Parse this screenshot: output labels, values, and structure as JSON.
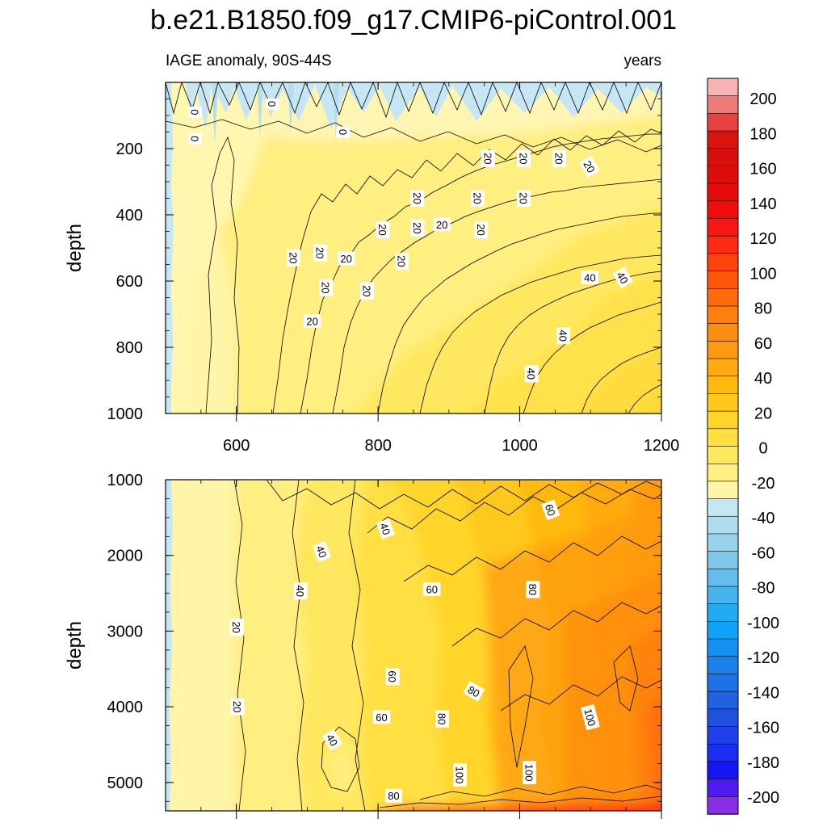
{
  "chart_data": [
    {
      "type": "contour",
      "panel": "upper",
      "title": "b.e21.B1850.f09_g17.CMIP6-piControl.001",
      "left_label": "IAGE anomaly, 90S-44S",
      "right_label": "years",
      "xlabel": "",
      "ylabel": "depth",
      "xlim": [
        500,
        1200
      ],
      "ylim": [
        1000,
        0
      ],
      "x_ticks": [
        600,
        800,
        1000,
        1200
      ],
      "y_ticks": [
        200,
        400,
        600,
        800,
        1000
      ],
      "contour_interval": 10,
      "contour_labels": [
        {
          "text": "0",
          "x": 541,
          "y": 90,
          "angle": 90
        },
        {
          "text": "0",
          "x": 541,
          "y": 170,
          "angle": 90
        },
        {
          "text": "0",
          "x": 650,
          "y": 65,
          "angle": 90
        },
        {
          "text": "0",
          "x": 750,
          "y": 150,
          "angle": 90
        },
        {
          "text": "20",
          "x": 955,
          "y": 230,
          "angle": 90
        },
        {
          "text": "20",
          "x": 1005,
          "y": 230,
          "angle": 90
        },
        {
          "text": "20",
          "x": 1055,
          "y": 230,
          "angle": 90
        },
        {
          "text": "20",
          "x": 1098,
          "y": 255,
          "angle": 60
        },
        {
          "text": "20",
          "x": 855,
          "y": 350,
          "angle": 90
        },
        {
          "text": "20",
          "x": 940,
          "y": 350,
          "angle": 90
        },
        {
          "text": "20",
          "x": 1005,
          "y": 350,
          "angle": 90
        },
        {
          "text": "20",
          "x": 890,
          "y": 430,
          "angle": 0
        },
        {
          "text": "20",
          "x": 855,
          "y": 440,
          "angle": 90
        },
        {
          "text": "20",
          "x": 806,
          "y": 445,
          "angle": 90
        },
        {
          "text": "20",
          "x": 945,
          "y": 445,
          "angle": 90
        },
        {
          "text": "20",
          "x": 680,
          "y": 530,
          "angle": 90
        },
        {
          "text": "20",
          "x": 718,
          "y": 515,
          "angle": 90
        },
        {
          "text": "20",
          "x": 755,
          "y": 533,
          "angle": 0
        },
        {
          "text": "20",
          "x": 833,
          "y": 540,
          "angle": 90
        },
        {
          "text": "20",
          "x": 726,
          "y": 620,
          "angle": 90
        },
        {
          "text": "20",
          "x": 784,
          "y": 630,
          "angle": 90
        },
        {
          "text": "20",
          "x": 707,
          "y": 722,
          "angle": 0
        },
        {
          "text": "40",
          "x": 1099,
          "y": 590,
          "angle": 0
        },
        {
          "text": "40",
          "x": 1145,
          "y": 590,
          "angle": 60
        },
        {
          "text": "40",
          "x": 1061,
          "y": 765,
          "angle": 90
        },
        {
          "text": "40",
          "x": 1016,
          "y": 880,
          "angle": 90
        }
      ]
    },
    {
      "type": "contour",
      "panel": "lower",
      "xlabel": "",
      "ylabel": "depth",
      "xlim": [
        500,
        1200
      ],
      "ylim": [
        5375,
        1000
      ],
      "x_ticks": [
        600,
        800,
        1000,
        1200
      ],
      "y_ticks": [
        1000,
        2000,
        3000,
        4000,
        5000
      ],
      "contour_interval": 10,
      "contour_labels": [
        {
          "text": "20",
          "x": 600,
          "y": 2950,
          "angle": 90
        },
        {
          "text": "20",
          "x": 601,
          "y": 4000,
          "angle": 90
        },
        {
          "text": "40",
          "x": 690,
          "y": 2470,
          "angle": 90
        },
        {
          "text": "40",
          "x": 720,
          "y": 1950,
          "angle": 70
        },
        {
          "text": "40",
          "x": 810,
          "y": 1650,
          "angle": 70
        },
        {
          "text": "40",
          "x": 735,
          "y": 4440,
          "angle": 60
        },
        {
          "text": "60",
          "x": 876,
          "y": 2450,
          "angle": 0
        },
        {
          "text": "60",
          "x": 1043,
          "y": 1400,
          "angle": 70
        },
        {
          "text": "60",
          "x": 820,
          "y": 3600,
          "angle": 90
        },
        {
          "text": "60",
          "x": 805,
          "y": 4140,
          "angle": 0
        },
        {
          "text": "80",
          "x": 1018,
          "y": 2450,
          "angle": 90
        },
        {
          "text": "80",
          "x": 935,
          "y": 3800,
          "angle": 30
        },
        {
          "text": "80",
          "x": 890,
          "y": 4160,
          "angle": 90
        },
        {
          "text": "80",
          "x": 822,
          "y": 5180,
          "angle": 0
        },
        {
          "text": "100",
          "x": 1099,
          "y": 4140,
          "angle": 75
        },
        {
          "text": "100",
          "x": 915,
          "y": 4900,
          "angle": 90
        },
        {
          "text": "100",
          "x": 1013,
          "y": 4870,
          "angle": 90
        }
      ]
    }
  ],
  "colorbar": {
    "labels": [
      "200",
      "180",
      "160",
      "140",
      "120",
      "100",
      "80",
      "60",
      "40",
      "20",
      "0",
      "-20",
      "-40",
      "-60",
      "-80",
      "-100",
      "-120",
      "-140",
      "-160",
      "-180",
      "-200"
    ],
    "colors_top_to_bottom": [
      "#f7b3b3",
      "#ef7a7a",
      "#e84141",
      "#d8140f",
      "#d70f0f",
      "#de0d0d",
      "#e60c0c",
      "#ef0c0c",
      "#fa1616",
      "#ff2a12",
      "#ff420c",
      "#ff560b",
      "#ff6a0c",
      "#ff7e10",
      "#ff8c12",
      "#ff9a10",
      "#ffaa0f",
      "#ffb90f",
      "#ffc81a",
      "#ffd52c",
      "#ffdf42",
      "#ffe85e",
      "#ffee80",
      "#fff5a8",
      "#c6e6f4",
      "#b0dcef",
      "#98d2ec",
      "#7fc8ea",
      "#64beeb",
      "#46b4ec",
      "#22aaf2",
      "#0fa2f6",
      "#1490f2",
      "#1a80ea",
      "#1d72e6",
      "#2062e2",
      "#2250de",
      "#2040ea",
      "#1a2ef2",
      "#1616f6",
      "#4c1cf0",
      "#8a2ee8"
    ]
  }
}
